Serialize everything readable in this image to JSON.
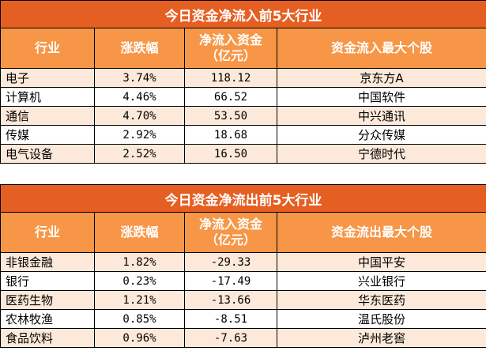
{
  "inflow": {
    "title": "今日资金净流入前5大行业",
    "headers": {
      "industry": "行业",
      "change": "涨跌幅",
      "net_line1": "净流入资金",
      "net_line2": "（亿元）",
      "top_stock": "资金流入最大个股"
    },
    "rows": [
      {
        "industry": "电子",
        "change": "3.74%",
        "net": "118.12",
        "stock": "京东方A"
      },
      {
        "industry": "计算机",
        "change": "4.46%",
        "net": "66.52",
        "stock": "中国软件"
      },
      {
        "industry": "通信",
        "change": "4.70%",
        "net": "53.50",
        "stock": "中兴通讯"
      },
      {
        "industry": "传媒",
        "change": "2.92%",
        "net": "18.68",
        "stock": "分众传媒"
      },
      {
        "industry": "电气设备",
        "change": "2.52%",
        "net": "16.50",
        "stock": "宁德时代"
      }
    ]
  },
  "outflow": {
    "title": "今日资金净流出前5大行业",
    "headers": {
      "industry": "行业",
      "change": "涨跌幅",
      "net_line1": "净流入资金",
      "net_line2": "（亿元）",
      "top_stock": "资金流出最大个股"
    },
    "rows": [
      {
        "industry": "非银金融",
        "change": "1.82%",
        "net": "-29.33",
        "stock": "中国平安"
      },
      {
        "industry": "银行",
        "change": "0.23%",
        "net": "-17.49",
        "stock": "兴业银行"
      },
      {
        "industry": "医药生物",
        "change": "1.21%",
        "net": "-13.66",
        "stock": "华东医药"
      },
      {
        "industry": "农林牧渔",
        "change": "0.85%",
        "net": "-8.51",
        "stock": "温氏股份"
      },
      {
        "industry": "食品饮料",
        "change": "0.96%",
        "net": "-7.63",
        "stock": "泸州老窖"
      }
    ]
  },
  "colors": {
    "title_bg": "#e65f22",
    "header_bg": "#f79646",
    "stripe_bg": "#fde9d9",
    "header_text": "#ffffff"
  }
}
